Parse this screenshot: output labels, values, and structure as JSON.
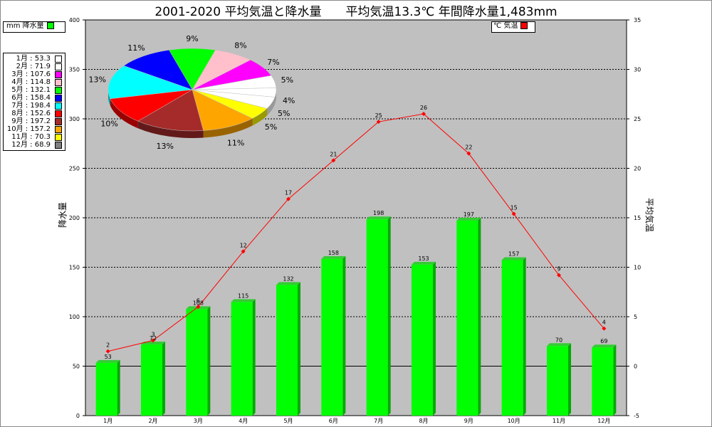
{
  "title": "2001-2020 平均気温と降水量　　平均気温13.3℃ 年間降水量1,483mm",
  "legend_precip": {
    "label": "mm 降水量",
    "color": "#00ff00"
  },
  "legend_temp": {
    "label": "℃ 気温",
    "color": "#ff0000"
  },
  "monthly_legend": [
    {
      "label": "1月 : 53.3",
      "color": "#ffffff"
    },
    {
      "label": "2月 : 71.9",
      "color": "#ffffff"
    },
    {
      "label": "3月 : 107.6",
      "color": "#ff00ff"
    },
    {
      "label": "4月 : 114.8",
      "color": "#ffc0cb"
    },
    {
      "label": "5月 : 132.1",
      "color": "#00ff00"
    },
    {
      "label": "6月 : 158.4",
      "color": "#0000ff"
    },
    {
      "label": "7月 : 198.4",
      "color": "#00ffff"
    },
    {
      "label": "8月 : 152.6",
      "color": "#ff0000"
    },
    {
      "label": "9月 : 197.2",
      "color": "#a52a2a"
    },
    {
      "label": "10月 : 157.2",
      "color": "#ffa500"
    },
    {
      "label": "11月 : 70.3",
      "color": "#ffff00"
    },
    {
      "label": "12月 : 68.9",
      "color": "#808080"
    }
  ],
  "chart_data": {
    "type": "bar",
    "categories": [
      "1月",
      "2月",
      "3月",
      "4月",
      "5月",
      "6月",
      "7月",
      "8月",
      "9月",
      "10月",
      "11月",
      "12月"
    ],
    "series": [
      {
        "name": "降水量",
        "type": "bar",
        "axis": "left",
        "color": "#00ff00",
        "values": [
          53.3,
          71.9,
          107.6,
          114.8,
          132.1,
          158.4,
          198.4,
          152.6,
          197.2,
          157.2,
          70.3,
          68.9
        ],
        "labels": [
          "53",
          "72",
          "108",
          "115",
          "132",
          "158",
          "198",
          "153",
          "197",
          "157",
          "70",
          "69"
        ]
      },
      {
        "name": "気温",
        "type": "line",
        "axis": "right",
        "color": "#ff0000",
        "values": [
          1.5,
          2.6,
          6.0,
          11.6,
          16.9,
          20.8,
          24.7,
          25.5,
          21.5,
          15.4,
          9.2,
          3.8
        ],
        "labels": [
          "2",
          "3",
          "6",
          "12",
          "17",
          "21",
          "25",
          "26",
          "22",
          "15",
          "9",
          "4"
        ]
      }
    ],
    "ylabel": "降水量",
    "ylabel_right": "平均気温",
    "ylim": [
      0,
      400
    ],
    "ylim_right": [
      -5,
      35
    ],
    "yticks": [
      0,
      50,
      100,
      150,
      200,
      250,
      300,
      350,
      400
    ],
    "yticks_right": [
      -5,
      0,
      5,
      10,
      15,
      20,
      25,
      30,
      35
    ],
    "grid": true,
    "pie": {
      "type": "pie",
      "slices": [
        {
          "month": "1月",
          "value": 53.3,
          "label": "4%",
          "color": "#ffffff"
        },
        {
          "month": "2月",
          "value": 71.9,
          "label": "5%",
          "color": "#ffffff"
        },
        {
          "month": "3月",
          "value": 107.6,
          "label": "7%",
          "color": "#ff00ff"
        },
        {
          "month": "4月",
          "value": 114.8,
          "label": "8%",
          "color": "#ffc0cb"
        },
        {
          "month": "5月",
          "value": 132.1,
          "label": "9%",
          "color": "#00ff00"
        },
        {
          "month": "6月",
          "value": 158.4,
          "label": "11%",
          "color": "#0000ff"
        },
        {
          "month": "7月",
          "value": 198.4,
          "label": "13%",
          "color": "#00ffff"
        },
        {
          "month": "8月",
          "value": 152.6,
          "label": "10%",
          "color": "#ff0000"
        },
        {
          "month": "9月",
          "value": 197.2,
          "label": "13%",
          "color": "#a52a2a"
        },
        {
          "month": "10月",
          "value": 157.2,
          "label": "11%",
          "color": "#ffa500"
        },
        {
          "month": "11月",
          "value": 70.3,
          "label": "5%",
          "color": "#ffff00"
        },
        {
          "month": "12月",
          "value": 68.9,
          "label": "5%",
          "color": "#ffffff"
        }
      ]
    }
  }
}
